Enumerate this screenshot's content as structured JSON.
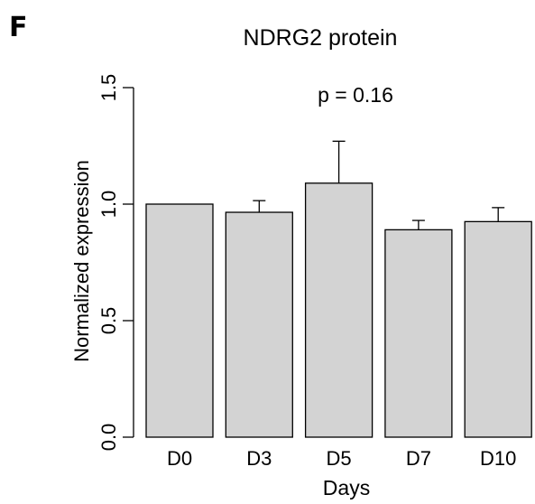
{
  "panel_label": "F",
  "chart_data": {
    "type": "bar",
    "title": "NDRG2 protein",
    "annotation": "p = 0.16",
    "xlabel": "Days",
    "ylabel": "Normalized expression",
    "categories": [
      "D0",
      "D3",
      "D5",
      "D7",
      "D10"
    ],
    "values": [
      1.0,
      0.965,
      1.09,
      0.89,
      0.925
    ],
    "error_upper": [
      0.0,
      0.05,
      0.18,
      0.04,
      0.06
    ],
    "ylim": [
      0,
      1.5
    ],
    "yticks": [
      "0.0",
      "0.5",
      "1.0",
      "1.5"
    ],
    "grid": false,
    "bar_color": "#d3d3d3",
    "edge_color": "#000000"
  }
}
